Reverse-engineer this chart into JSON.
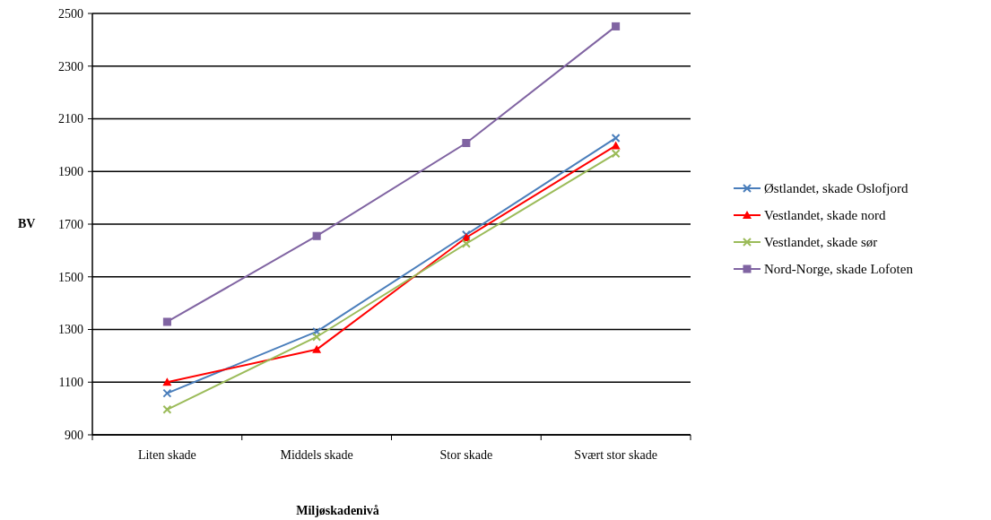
{
  "chart_data": {
    "type": "line",
    "xlabel": "Miljøskadenivå",
    "ylabel": "BV",
    "categories": [
      "Liten skade",
      "Middels skade",
      "Stor skade",
      "Svært stor skade"
    ],
    "series": [
      {
        "name": "Østlandet, skade Oslofjord",
        "color": "#4a7ebb",
        "marker": "cross",
        "values": [
          1058,
          1292,
          1660,
          2027
        ]
      },
      {
        "name": "Vestlandet, skade nord",
        "color": "#ff0000",
        "marker": "triangle",
        "values": [
          1100,
          1224,
          1649,
          1998
        ]
      },
      {
        "name": "Vestlandet, skade sør",
        "color": "#9bbb59",
        "marker": "cross",
        "values": [
          996,
          1272,
          1626,
          1968
        ]
      },
      {
        "name": "Nord-Norge, skade Lofoten",
        "color": "#8064a2",
        "marker": "square",
        "values": [
          1329,
          1655,
          2008,
          2451
        ]
      }
    ],
    "ylim": [
      900,
      2500
    ],
    "yticks": [
      900,
      1100,
      1300,
      1500,
      1700,
      1900,
      2100,
      2300,
      2500
    ],
    "grid": "y",
    "legend": "right",
    "line_style": "solid"
  }
}
